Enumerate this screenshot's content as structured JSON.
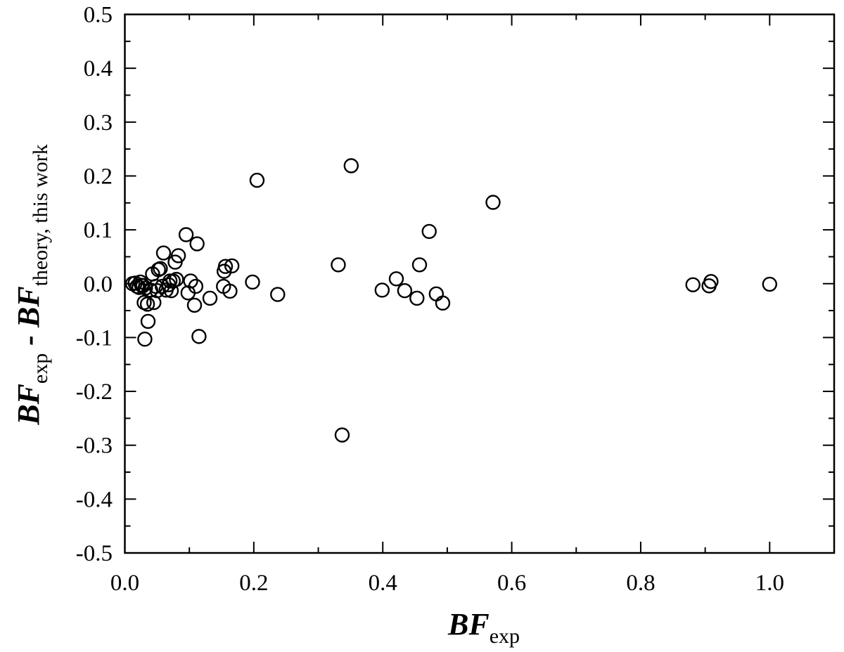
{
  "chart_data": {
    "type": "scatter",
    "title": "",
    "xlabel": {
      "main": "BF",
      "sub": "exp"
    },
    "ylabel": {
      "main1": "BF",
      "sub1": "exp",
      "sep": " - ",
      "main2": "BF",
      "sub2": "theory, this work"
    },
    "xlim": [
      0.0,
      1.1
    ],
    "ylim": [
      -0.5,
      0.5
    ],
    "xticks_major": [
      0.0,
      0.2,
      0.4,
      0.6,
      0.8,
      1.0
    ],
    "xtick_labels": [
      "0.0",
      "0.2",
      "0.4",
      "0.6",
      "0.8",
      "1.0"
    ],
    "yticks_major": [
      -0.5,
      -0.4,
      -0.3,
      -0.2,
      -0.1,
      0.0,
      0.1,
      0.2,
      0.3,
      0.4,
      0.5
    ],
    "ytick_labels": [
      "-0.5",
      "-0.4",
      "-0.3",
      "-0.2",
      "-0.1",
      "0.0",
      "0.1",
      "0.2",
      "0.3",
      "0.4",
      "0.5"
    ],
    "grid": false,
    "marker": "open-circle",
    "points": [
      {
        "x": 0.012,
        "y": 0.0
      },
      {
        "x": 0.016,
        "y": 0.001
      },
      {
        "x": 0.019,
        "y": -0.005
      },
      {
        "x": 0.022,
        "y": -0.007
      },
      {
        "x": 0.024,
        "y": 0.003
      },
      {
        "x": 0.026,
        "y": -0.003
      },
      {
        "x": 0.028,
        "y": -0.004
      },
      {
        "x": 0.03,
        "y": -0.035
      },
      {
        "x": 0.031,
        "y": -0.103
      },
      {
        "x": 0.032,
        "y": -0.008
      },
      {
        "x": 0.035,
        "y": -0.038
      },
      {
        "x": 0.036,
        "y": -0.07
      },
      {
        "x": 0.04,
        "y": -0.012
      },
      {
        "x": 0.043,
        "y": 0.018
      },
      {
        "x": 0.045,
        "y": -0.035
      },
      {
        "x": 0.048,
        "y": -0.005
      },
      {
        "x": 0.05,
        "y": -0.013
      },
      {
        "x": 0.052,
        "y": 0.026
      },
      {
        "x": 0.055,
        "y": 0.028
      },
      {
        "x": 0.058,
        "y": -0.005
      },
      {
        "x": 0.06,
        "y": 0.057
      },
      {
        "x": 0.064,
        "y": -0.012
      },
      {
        "x": 0.068,
        "y": -0.002
      },
      {
        "x": 0.07,
        "y": 0.005
      },
      {
        "x": 0.072,
        "y": -0.013
      },
      {
        "x": 0.075,
        "y": 0.005
      },
      {
        "x": 0.078,
        "y": 0.04
      },
      {
        "x": 0.08,
        "y": 0.008
      },
      {
        "x": 0.083,
        "y": 0.052
      },
      {
        "x": 0.095,
        "y": 0.091
      },
      {
        "x": 0.098,
        "y": -0.017
      },
      {
        "x": 0.102,
        "y": 0.005
      },
      {
        "x": 0.108,
        "y": -0.04
      },
      {
        "x": 0.11,
        "y": -0.005
      },
      {
        "x": 0.112,
        "y": 0.074
      },
      {
        "x": 0.115,
        "y": -0.098
      },
      {
        "x": 0.132,
        "y": -0.027
      },
      {
        "x": 0.153,
        "y": -0.005
      },
      {
        "x": 0.154,
        "y": 0.023
      },
      {
        "x": 0.156,
        "y": 0.032
      },
      {
        "x": 0.163,
        "y": -0.014
      },
      {
        "x": 0.166,
        "y": 0.033
      },
      {
        "x": 0.198,
        "y": 0.003
      },
      {
        "x": 0.205,
        "y": 0.192
      },
      {
        "x": 0.237,
        "y": -0.02
      },
      {
        "x": 0.331,
        "y": 0.035
      },
      {
        "x": 0.337,
        "y": -0.281
      },
      {
        "x": 0.351,
        "y": 0.219
      },
      {
        "x": 0.399,
        "y": -0.012
      },
      {
        "x": 0.421,
        "y": 0.009
      },
      {
        "x": 0.434,
        "y": -0.013
      },
      {
        "x": 0.453,
        "y": -0.027
      },
      {
        "x": 0.457,
        "y": 0.035
      },
      {
        "x": 0.472,
        "y": 0.097
      },
      {
        "x": 0.483,
        "y": -0.019
      },
      {
        "x": 0.493,
        "y": -0.036
      },
      {
        "x": 0.571,
        "y": 0.151
      },
      {
        "x": 0.881,
        "y": -0.002
      },
      {
        "x": 0.906,
        "y": -0.004
      },
      {
        "x": 0.909,
        "y": 0.004
      },
      {
        "x": 1.0,
        "y": -0.001
      }
    ]
  }
}
